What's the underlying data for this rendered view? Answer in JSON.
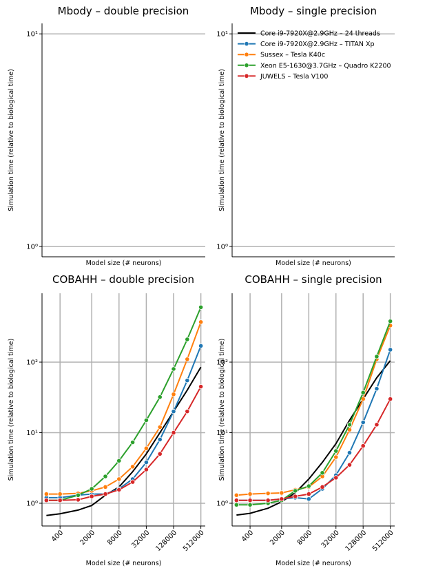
{
  "chart_data": [
    {
      "type": "line",
      "title": "Mbody – double precision",
      "ylabel": "Simulation time (relative to biological time)",
      "xlabel": "Model size (# neurons)",
      "ylog": true,
      "ylim": [
        0.894,
        11.2
      ],
      "yticks": [
        {
          "value": 1,
          "label": "10⁰"
        },
        {
          "value": 10,
          "label": "10¹"
        }
      ],
      "grid": true,
      "series": []
    },
    {
      "type": "line",
      "title": "Mbody – single precision",
      "ylabel": "Simulation time (relative to biological time)",
      "xlabel": "Model size (# neurons)",
      "ylog": true,
      "ylim": [
        0.894,
        11.2
      ],
      "yticks": [
        {
          "value": 1,
          "label": "10⁰"
        },
        {
          "value": 10,
          "label": "10¹"
        }
      ],
      "grid": true,
      "series": [],
      "legend": {
        "loc": "upper right",
        "series": [
          {
            "name": "Core i9-7920X@2.9GHz – 24 threads",
            "color": "#000000",
            "marker": false
          },
          {
            "name": "Core i9-7920X@2.9GHz – TITAN Xp",
            "color": "#1f77b4",
            "marker": true
          },
          {
            "name": "Sussex – Tesla K40c",
            "color": "#ff7f0e",
            "marker": true
          },
          {
            "name": "Xeon E5-1630@3.7GHz – Quadro K2200",
            "color": "#2ca02c",
            "marker": true
          },
          {
            "name": "JUWELS – Tesla V100",
            "color": "#d62728",
            "marker": true
          }
        ]
      }
    },
    {
      "type": "line",
      "title": "COBAHH – double precision",
      "ylabel": "Simulation time (relative to biological time)",
      "xlabel": "Model size (# neurons)",
      "xlog": true,
      "ylog": true,
      "xlim": [
        160,
        640000
      ],
      "ylim": [
        0.476,
        946
      ],
      "xticks": [
        400,
        2000,
        8000,
        32000,
        128000,
        512000
      ],
      "yticks": [
        {
          "value": 1,
          "label": "10⁰"
        },
        {
          "value": 10,
          "label": "10¹"
        },
        {
          "value": 100,
          "label": "10²"
        }
      ],
      "grid": true,
      "x": [
        200,
        400,
        1000,
        2000,
        4000,
        8000,
        16000,
        32000,
        64000,
        128000,
        256000,
        512000
      ],
      "series": [
        {
          "color": "#000000",
          "marker": false,
          "values": [
            0.67,
            0.71,
            0.8,
            0.93,
            1.3,
            1.7,
            2.8,
            5,
            10,
            20,
            40,
            85
          ]
        },
        {
          "color": "#1f77b4",
          "marker": true,
          "values": [
            1.2,
            1.2,
            1.3,
            1.35,
            1.35,
            1.6,
            2.2,
            3.8,
            8,
            20,
            55,
            170
          ]
        },
        {
          "color": "#ff7f0e",
          "marker": true,
          "values": [
            1.35,
            1.35,
            1.38,
            1.5,
            1.7,
            2.2,
            3.3,
            6,
            12,
            35,
            110,
            370
          ]
        },
        {
          "color": "#2ca02c",
          "marker": true,
          "values": [
            1.1,
            1.1,
            1.3,
            1.6,
            2.4,
            4,
            7.3,
            15,
            32,
            80,
            210,
            600
          ]
        },
        {
          "color": "#d62728",
          "marker": true,
          "values": [
            1.1,
            1.1,
            1.12,
            1.25,
            1.35,
            1.55,
            2.0,
            3.0,
            5.0,
            10,
            20,
            45
          ]
        }
      ]
    },
    {
      "type": "line",
      "title": "COBAHH – single precision",
      "ylabel": "Simulation time (relative to biological time)",
      "xlabel": "Model size (# neurons)",
      "xlog": true,
      "ylog": true,
      "xlim": [
        160,
        640000
      ],
      "ylim": [
        0.476,
        946
      ],
      "xticks": [
        400,
        2000,
        8000,
        32000,
        128000,
        512000
      ],
      "yticks": [
        {
          "value": 1,
          "label": "10⁰"
        },
        {
          "value": 10,
          "label": "10¹"
        },
        {
          "value": 100,
          "label": "10²"
        }
      ],
      "grid": true,
      "x": [
        200,
        400,
        1000,
        2000,
        4000,
        8000,
        16000,
        32000,
        64000,
        128000,
        256000,
        512000
      ],
      "series": [
        {
          "color": "#000000",
          "marker": false,
          "values": [
            0.68,
            0.72,
            0.85,
            1.05,
            1.4,
            2.2,
            3.8,
            7,
            15,
            30,
            60,
            105
          ]
        },
        {
          "color": "#1f77b4",
          "marker": true,
          "values": [
            1.1,
            1.1,
            1.1,
            1.15,
            1.2,
            1.15,
            1.6,
            2.5,
            5.2,
            14,
            42,
            150
          ]
        },
        {
          "color": "#ff7f0e",
          "marker": true,
          "values": [
            1.3,
            1.35,
            1.38,
            1.4,
            1.55,
            1.7,
            2.4,
            4.5,
            11,
            30,
            110,
            330
          ]
        },
        {
          "color": "#2ca02c",
          "marker": true,
          "values": [
            0.95,
            0.95,
            1.0,
            1.1,
            1.5,
            1.75,
            2.7,
            5.5,
            13,
            37,
            120,
            380
          ]
        },
        {
          "color": "#d62728",
          "marker": true,
          "values": [
            1.1,
            1.1,
            1.1,
            1.15,
            1.25,
            1.35,
            1.7,
            2.3,
            3.5,
            6.5,
            13,
            30
          ]
        }
      ]
    }
  ]
}
